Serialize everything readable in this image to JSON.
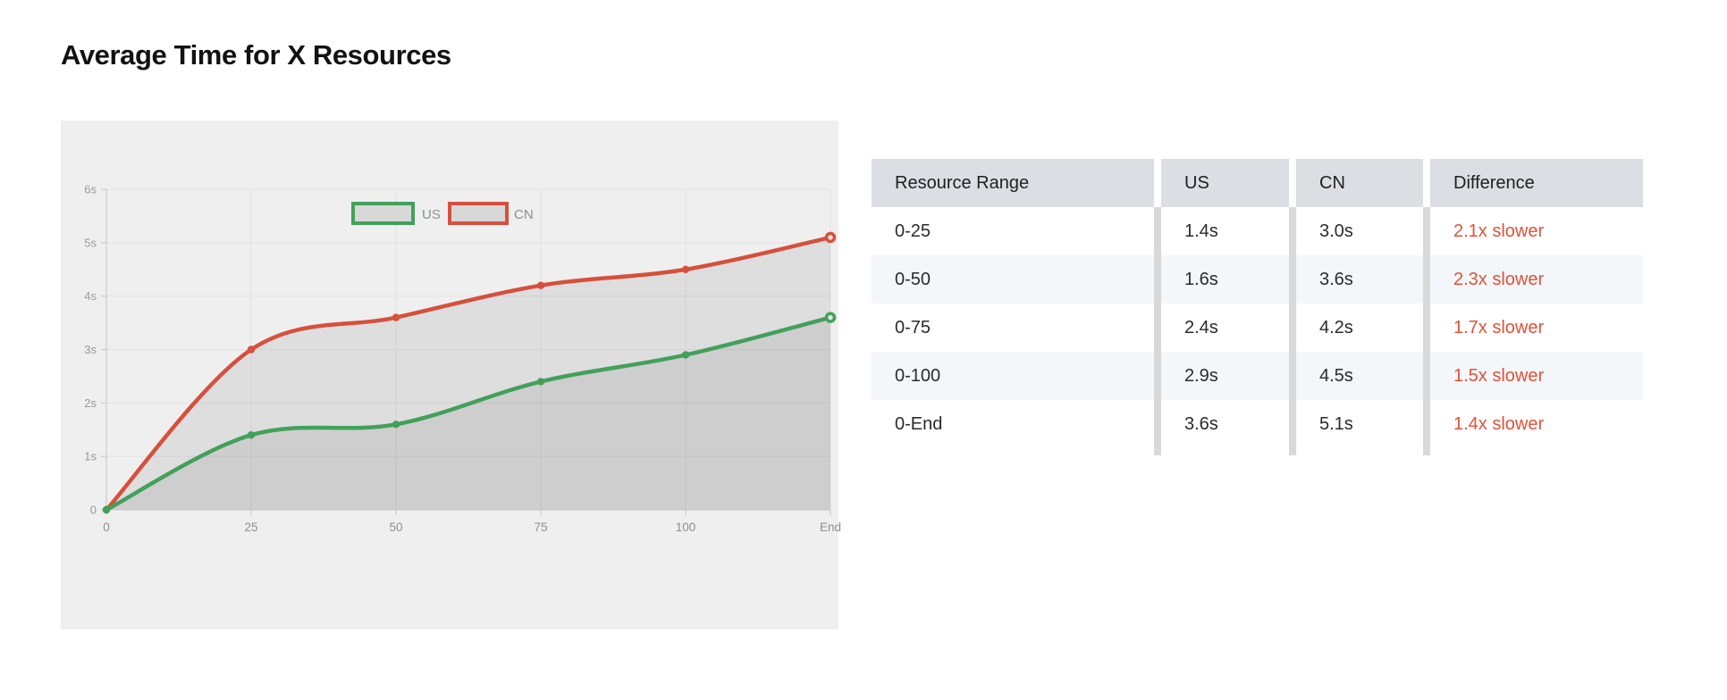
{
  "title": "Average Time for X Resources",
  "chart_data": {
    "type": "line",
    "categories": [
      "0",
      "25",
      "50",
      "75",
      "100",
      "End"
    ],
    "series": [
      {
        "name": "US",
        "values": [
          0,
          1.4,
          1.6,
          2.4,
          2.9,
          3.6
        ],
        "color": "#43a05a"
      },
      {
        "name": "CN",
        "values": [
          0,
          3.0,
          3.6,
          4.2,
          4.5,
          5.1
        ],
        "color": "#d5503d"
      }
    ],
    "y_tick_labels": [
      "0",
      "1s",
      "2s",
      "3s",
      "4s",
      "5s",
      "6s"
    ],
    "ylim": [
      0,
      6
    ],
    "grid": true,
    "legend_position": "top-center",
    "area_fill": "rgba(0,0,0,0.07)",
    "title": "",
    "xlabel": "",
    "ylabel": ""
  },
  "table": {
    "columns": [
      "Resource Range",
      "US",
      "CN",
      "Difference"
    ],
    "rows": [
      {
        "range": "0-25",
        "us": "1.4s",
        "cn": "3.0s",
        "difference": "2.1x slower"
      },
      {
        "range": "0-50",
        "us": "1.6s",
        "cn": "3.6s",
        "difference": "2.3x slower"
      },
      {
        "range": "0-75",
        "us": "2.4s",
        "cn": "4.2s",
        "difference": "1.7x slower"
      },
      {
        "range": "0-100",
        "us": "2.9s",
        "cn": "4.5s",
        "difference": "1.5x slower"
      },
      {
        "range": "0-End",
        "us": "3.6s",
        "cn": "5.1s",
        "difference": "1.4x slower"
      }
    ],
    "difference_color": "#e25138"
  }
}
